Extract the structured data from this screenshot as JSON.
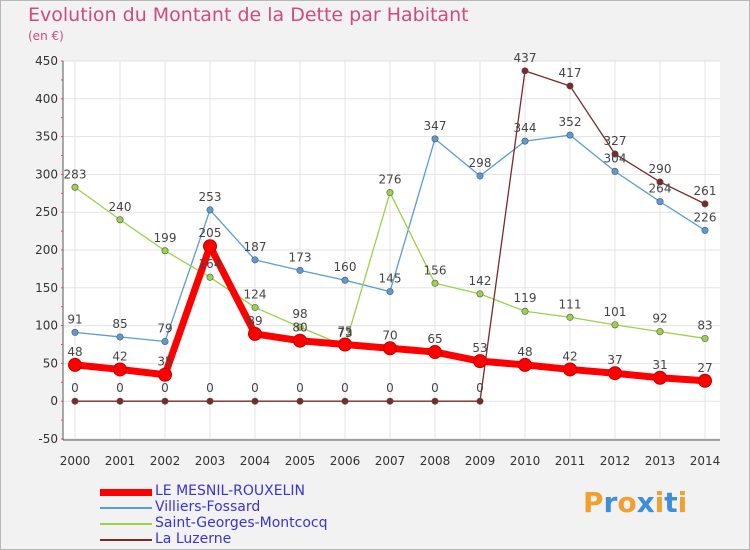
{
  "title": "Evolution du Montant de la Dette par Habitant",
  "subtitle": "(en €)",
  "logo": {
    "letters": [
      "P",
      "r",
      "o",
      "x",
      "i",
      "t",
      "i"
    ],
    "colors": [
      "#f0a030",
      "#3c8fd8",
      "#f0a030",
      "#3c8fd8",
      "#f0a030",
      "#3c8fd8",
      "#f0a030"
    ]
  },
  "chart_data": {
    "type": "line",
    "title": "Evolution du Montant de la Dette par Habitant",
    "ylabel": "(en €)",
    "xlabel": "",
    "x": [
      "2000",
      "2001",
      "2002",
      "2003",
      "2004",
      "2005",
      "2006",
      "2007",
      "2008",
      "2009",
      "2010",
      "2011",
      "2012",
      "2013",
      "2014"
    ],
    "ylim": [
      -50,
      450
    ],
    "yticks": [
      -50,
      0,
      50,
      100,
      150,
      200,
      250,
      300,
      350,
      400,
      450
    ],
    "grid": true,
    "legend_position": "bottom-left",
    "series": [
      {
        "name": "LE MESNIL-ROUXELIN",
        "color": "#ff0000",
        "emphasis": true,
        "values": [
          48,
          42,
          35,
          205,
          89,
          80,
          75,
          70,
          65,
          53,
          48,
          42,
          37,
          31,
          27
        ]
      },
      {
        "name": "Villiers-Fossard",
        "color": "#5b9bd5",
        "values": [
          91,
          85,
          79,
          253,
          187,
          173,
          160,
          145,
          347,
          298,
          344,
          352,
          304,
          264,
          226
        ]
      },
      {
        "name": "Saint-Georges-Montcocq",
        "color": "#9ad24a",
        "values": [
          283,
          240,
          199,
          164,
          124,
          98,
          73,
          276,
          156,
          142,
          119,
          111,
          101,
          92,
          83
        ]
      },
      {
        "name": "La Luzerne",
        "color": "#7a2a2a",
        "values": [
          0,
          0,
          0,
          0,
          0,
          0,
          0,
          0,
          0,
          0,
          437,
          417,
          327,
          290,
          261
        ]
      }
    ]
  }
}
